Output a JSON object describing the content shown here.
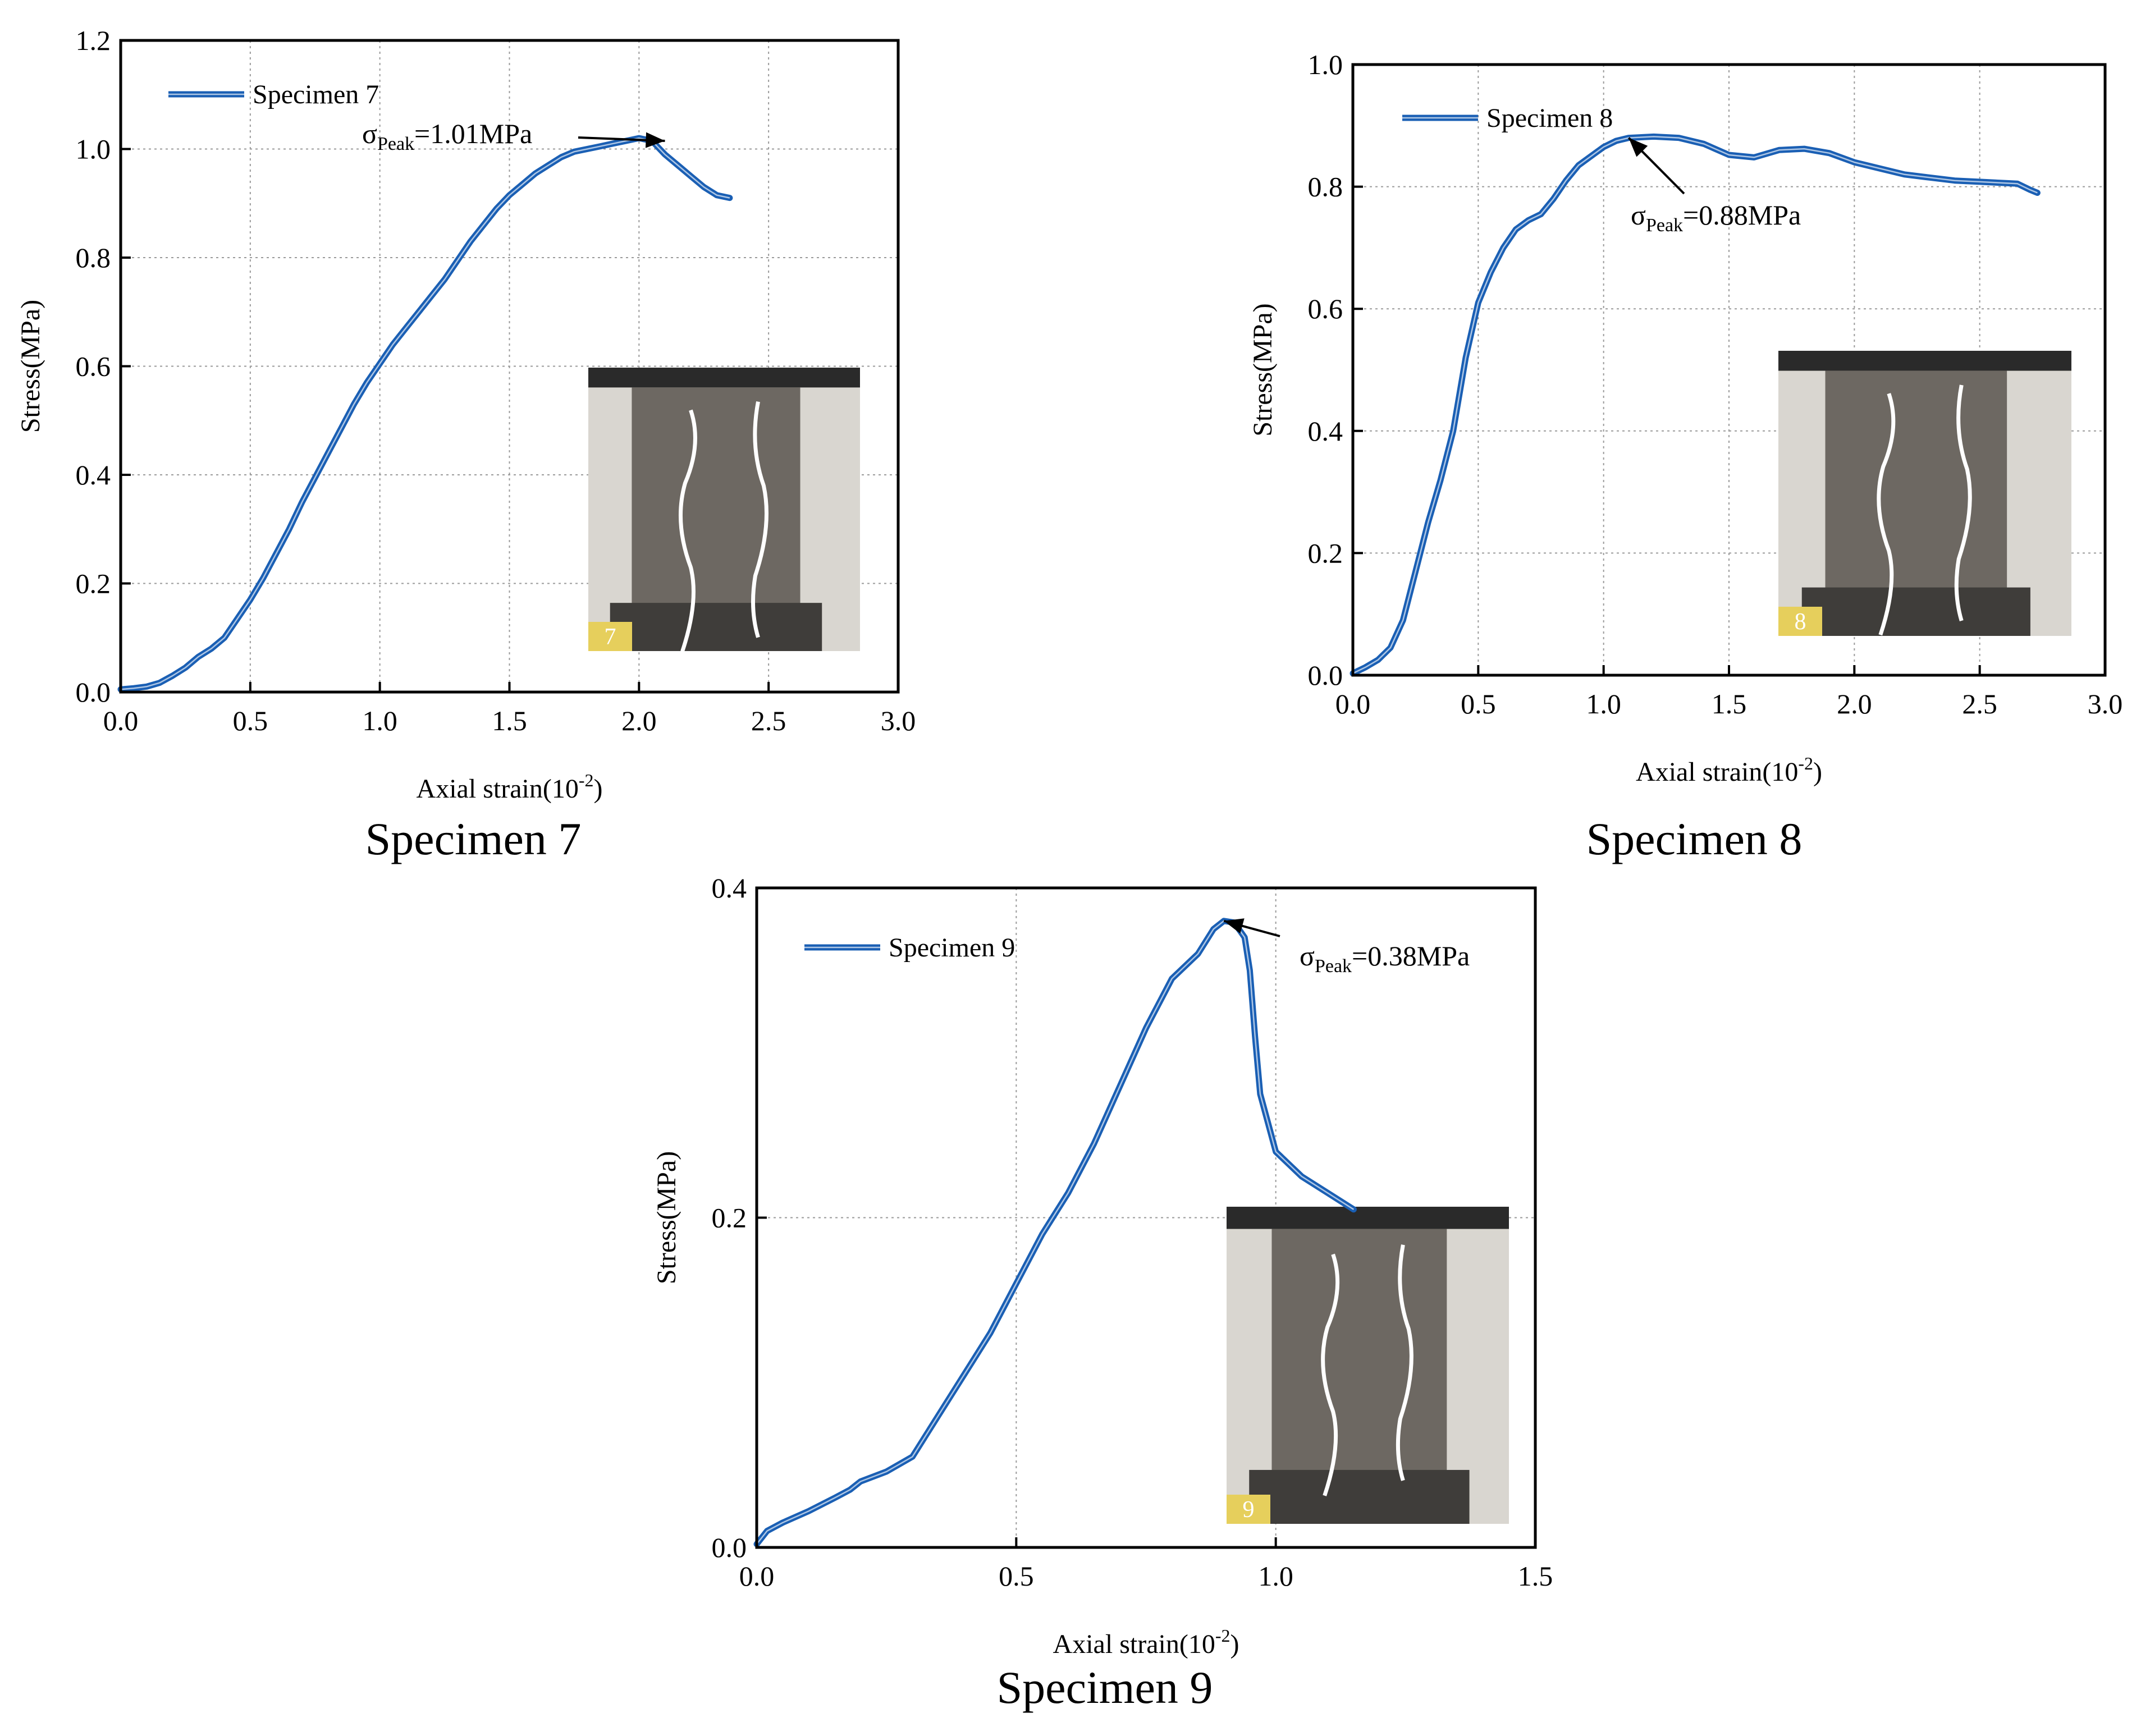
{
  "figure": {
    "captions": [
      "Specimen 7",
      "Specimen 8",
      "Specimen 9"
    ]
  },
  "chart_data": [
    {
      "type": "line",
      "caption": "Specimen 7",
      "xlabel": "Axial strain(10",
      "xlabel_exp": "-2",
      "xlabel_close": ")",
      "ylabel": "Stress(MPa)",
      "xlim": [
        0,
        3.0
      ],
      "ylim": [
        0,
        1.2
      ],
      "xticks": [
        "0.0",
        "0.5",
        "1.0",
        "1.5",
        "2.0",
        "2.5",
        "3.0"
      ],
      "yticks": [
        "0.0",
        "0.2",
        "0.4",
        "0.6",
        "0.8",
        "1.0",
        "1.2"
      ],
      "grid": true,
      "legend_position": "top-left",
      "line_color": "#1a5fb4",
      "series": [
        {
          "name": "Specimen 7",
          "x": [
            0.0,
            0.05,
            0.1,
            0.15,
            0.2,
            0.25,
            0.3,
            0.35,
            0.4,
            0.45,
            0.5,
            0.55,
            0.6,
            0.65,
            0.7,
            0.75,
            0.8,
            0.85,
            0.9,
            0.95,
            1.0,
            1.05,
            1.1,
            1.15,
            1.2,
            1.25,
            1.3,
            1.35,
            1.4,
            1.45,
            1.5,
            1.55,
            1.6,
            1.65,
            1.7,
            1.75,
            1.8,
            1.85,
            1.9,
            1.95,
            2.0,
            2.05,
            2.1,
            2.15,
            2.2,
            2.25,
            2.3,
            2.35
          ],
          "y": [
            0.005,
            0.007,
            0.01,
            0.017,
            0.03,
            0.045,
            0.065,
            0.08,
            0.1,
            0.135,
            0.17,
            0.21,
            0.255,
            0.3,
            0.35,
            0.395,
            0.44,
            0.485,
            0.53,
            0.57,
            0.605,
            0.64,
            0.67,
            0.7,
            0.73,
            0.76,
            0.795,
            0.83,
            0.86,
            0.89,
            0.915,
            0.935,
            0.955,
            0.97,
            0.985,
            0.995,
            1.0,
            1.005,
            1.01,
            1.015,
            1.02,
            1.015,
            0.99,
            0.97,
            0.95,
            0.93,
            0.915,
            0.91
          ]
        }
      ],
      "annotation": {
        "prefix": "σ",
        "sub": "Peak",
        "suffix": "=1.01MPa",
        "point": [
          2.1,
          1.015
        ]
      },
      "inset_photo": {
        "label": "7"
      }
    },
    {
      "type": "line",
      "caption": "Specimen 8",
      "xlabel": "Axial strain(10",
      "xlabel_exp": "-2",
      "xlabel_close": ")",
      "ylabel": "Stress(MPa)",
      "xlim": [
        0,
        3.0
      ],
      "ylim": [
        0,
        1.0
      ],
      "xticks": [
        "0.0",
        "0.5",
        "1.0",
        "1.5",
        "2.0",
        "2.5",
        "3.0"
      ],
      "yticks": [
        "0.0",
        "0.2",
        "0.4",
        "0.6",
        "0.8",
        "1.0"
      ],
      "grid": true,
      "legend_position": "top-left",
      "line_color": "#1a5fb4",
      "series": [
        {
          "name": "Specimen 8",
          "x": [
            0.0,
            0.05,
            0.1,
            0.15,
            0.2,
            0.25,
            0.3,
            0.35,
            0.4,
            0.45,
            0.5,
            0.55,
            0.6,
            0.65,
            0.7,
            0.75,
            0.8,
            0.85,
            0.9,
            0.95,
            1.0,
            1.05,
            1.1,
            1.2,
            1.3,
            1.4,
            1.5,
            1.6,
            1.7,
            1.8,
            1.9,
            2.0,
            2.1,
            2.2,
            2.3,
            2.4,
            2.5,
            2.6,
            2.65,
            2.7,
            2.73
          ],
          "y": [
            0.003,
            0.013,
            0.025,
            0.045,
            0.09,
            0.17,
            0.25,
            0.32,
            0.4,
            0.52,
            0.61,
            0.66,
            0.7,
            0.73,
            0.745,
            0.755,
            0.78,
            0.81,
            0.835,
            0.85,
            0.865,
            0.875,
            0.88,
            0.882,
            0.88,
            0.87,
            0.852,
            0.848,
            0.86,
            0.862,
            0.855,
            0.84,
            0.83,
            0.82,
            0.815,
            0.81,
            0.808,
            0.806,
            0.805,
            0.795,
            0.79
          ]
        }
      ],
      "annotation": {
        "prefix": "σ",
        "sub": "Peak",
        "suffix": "=0.88MPa",
        "point": [
          1.1,
          0.88
        ]
      },
      "inset_photo": {
        "label": "8"
      }
    },
    {
      "type": "line",
      "caption": "Specimen 9",
      "xlabel": "Axial strain(10",
      "xlabel_exp": "-2",
      "xlabel_close": ")",
      "ylabel": "Stress(MPa)",
      "xlim": [
        0,
        1.5
      ],
      "ylim": [
        0,
        0.4
      ],
      "xticks": [
        "0.0",
        "0.5",
        "1.0",
        "1.5"
      ],
      "yticks": [
        "0.0",
        "0.2",
        "0.4"
      ],
      "grid": true,
      "legend_position": "top-left",
      "line_color": "#1a5fb4",
      "series": [
        {
          "name": "Specimen 9",
          "x": [
            0.0,
            0.02,
            0.05,
            0.1,
            0.15,
            0.18,
            0.2,
            0.25,
            0.3,
            0.35,
            0.4,
            0.45,
            0.5,
            0.55,
            0.6,
            0.65,
            0.7,
            0.75,
            0.8,
            0.85,
            0.88,
            0.9,
            0.92,
            0.94,
            0.95,
            0.96,
            0.97,
            1.0,
            1.05,
            1.1,
            1.15
          ],
          "y": [
            0.002,
            0.01,
            0.015,
            0.022,
            0.03,
            0.035,
            0.04,
            0.046,
            0.055,
            0.08,
            0.105,
            0.13,
            0.16,
            0.19,
            0.215,
            0.245,
            0.28,
            0.315,
            0.345,
            0.36,
            0.375,
            0.38,
            0.379,
            0.37,
            0.35,
            0.31,
            0.275,
            0.24,
            0.225,
            0.215,
            0.205
          ]
        }
      ],
      "annotation": {
        "prefix": "σ",
        "sub": "Peak",
        "suffix": "=0.38MPa",
        "point": [
          0.9,
          0.38
        ]
      },
      "inset_photo": {
        "label": "9"
      }
    }
  ]
}
